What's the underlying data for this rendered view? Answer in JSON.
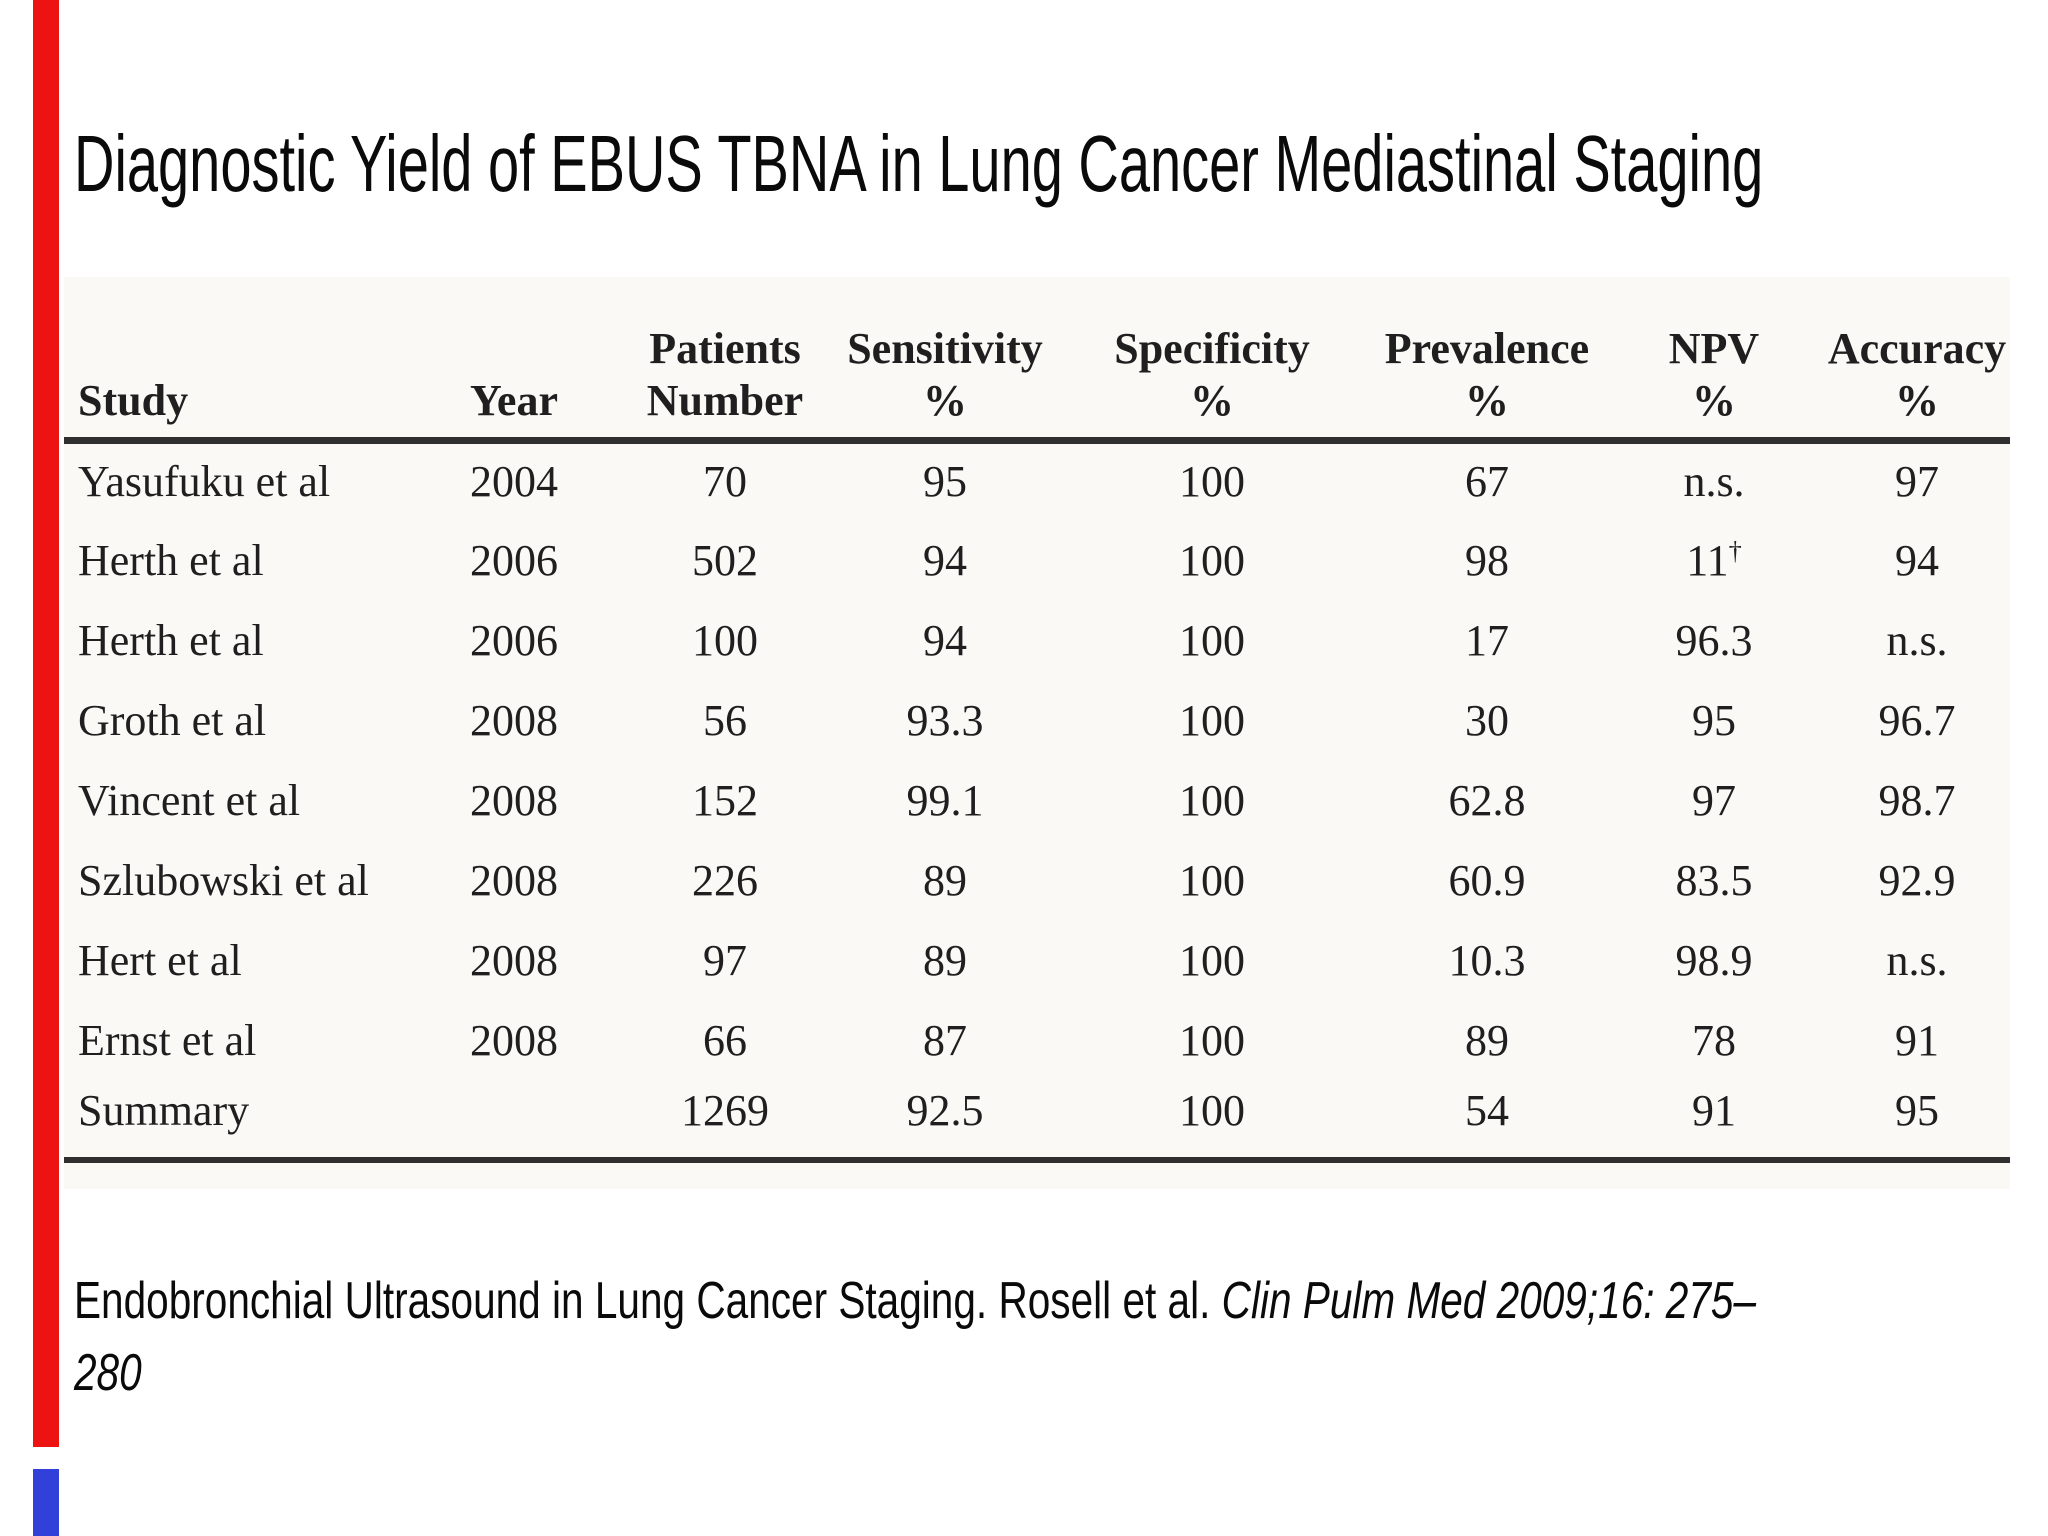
{
  "slide": {
    "title": "Diagnostic Yield of EBUS TBNA in Lung Cancer Mediastinal Staging"
  },
  "accents": {
    "red_edge_bar_color": "#ee1313",
    "blue_edge_bar_color": "#3040d8"
  },
  "table": {
    "headers": [
      {
        "l1": "",
        "l2": "Study"
      },
      {
        "l1": "",
        "l2": "Year"
      },
      {
        "l1": "Patients",
        "l2": "Number"
      },
      {
        "l1": "Sensitivity",
        "l2": "%"
      },
      {
        "l1": "Specificity",
        "l2": "%"
      },
      {
        "l1": "Prevalence",
        "l2": "%"
      },
      {
        "l1": "NPV",
        "l2": "%"
      },
      {
        "l1": "Accuracy",
        "l2": "%"
      }
    ],
    "rows": [
      {
        "study": "Yasufuku et al",
        "year": "2004",
        "patients": "70",
        "sensitivity": "95",
        "specificity": "100",
        "prevalence": "67",
        "npv": "n.s.",
        "npv_sup": "",
        "accuracy": "97"
      },
      {
        "study": "Herth et al",
        "year": "2006",
        "patients": "502",
        "sensitivity": "94",
        "specificity": "100",
        "prevalence": "98",
        "npv": "11",
        "npv_sup": "†",
        "accuracy": "94"
      },
      {
        "study": "Herth et al",
        "year": "2006",
        "patients": "100",
        "sensitivity": "94",
        "specificity": "100",
        "prevalence": "17",
        "npv": "96.3",
        "npv_sup": "",
        "accuracy": "n.s."
      },
      {
        "study": "Groth et al",
        "year": "2008",
        "patients": "56",
        "sensitivity": "93.3",
        "specificity": "100",
        "prevalence": "30",
        "npv": "95",
        "npv_sup": "",
        "accuracy": "96.7"
      },
      {
        "study": "Vincent et al",
        "year": "2008",
        "patients": "152",
        "sensitivity": "99.1",
        "specificity": "100",
        "prevalence": "62.8",
        "npv": "97",
        "npv_sup": "",
        "accuracy": "98.7"
      },
      {
        "study": "Szlubowski et al",
        "year": "2008",
        "patients": "226",
        "sensitivity": "89",
        "specificity": "100",
        "prevalence": "60.9",
        "npv": "83.5",
        "npv_sup": "",
        "accuracy": "92.9"
      },
      {
        "study": "Hert et al",
        "year": "2008",
        "patients": "97",
        "sensitivity": "89",
        "specificity": "100",
        "prevalence": "10.3",
        "npv": "98.9",
        "npv_sup": "",
        "accuracy": "n.s."
      },
      {
        "study": "Ernst et al",
        "year": "2008",
        "patients": "66",
        "sensitivity": "87",
        "specificity": "100",
        "prevalence": "89",
        "npv": "78",
        "npv_sup": "",
        "accuracy": "91"
      },
      {
        "study": "Summary",
        "year": "",
        "patients": "1269",
        "sensitivity": "92.5",
        "specificity": "100",
        "prevalence": "54",
        "npv": "91",
        "npv_sup": "",
        "accuracy": "95"
      }
    ]
  },
  "citation": {
    "text": "Endobronchial Ultrasound in Lung Cancer Staging. Rosell et al. ",
    "journal_line1": "Clin Pulm Med 2009;16: 275–",
    "journal_line2": "280"
  }
}
